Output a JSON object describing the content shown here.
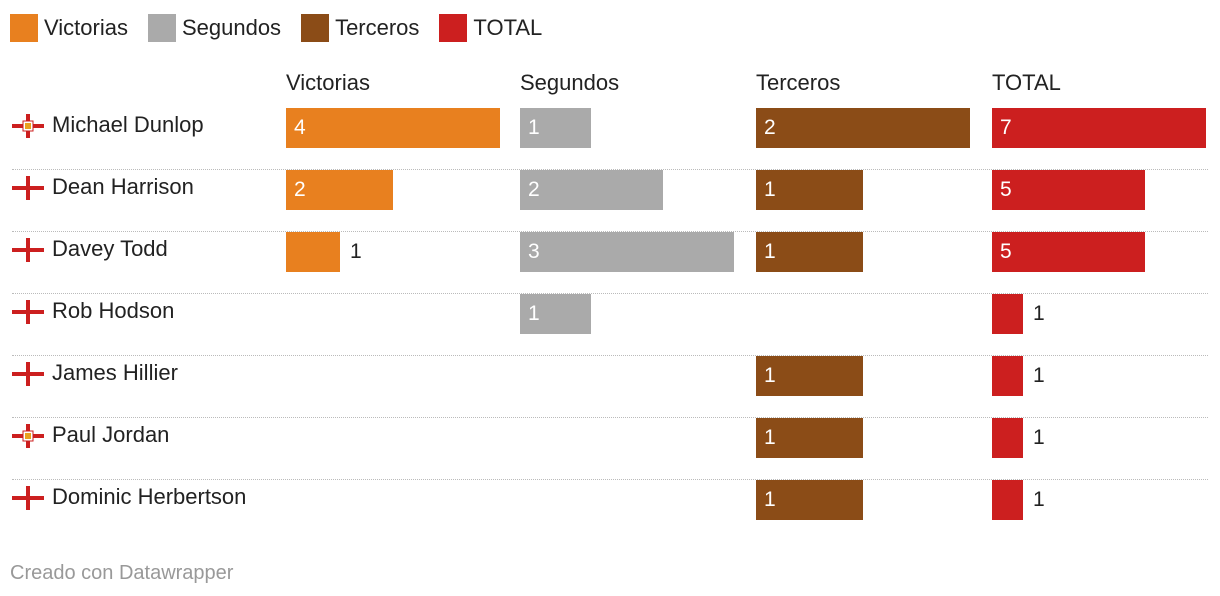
{
  "legend": [
    {
      "label": "Victorias",
      "color": "#e8801f"
    },
    {
      "label": "Segundos",
      "color": "#aaaaaa"
    },
    {
      "label": "Terceros",
      "color": "#8b4c17"
    },
    {
      "label": "TOTAL",
      "color": "#cc1f1f"
    }
  ],
  "chart_data": {
    "type": "bar",
    "columns": [
      "Victorias",
      "Segundos",
      "Terceros",
      "TOTAL"
    ],
    "column_colors": [
      "#e8801f",
      "#aaaaaa",
      "#8b4c17",
      "#cc1f1f"
    ],
    "column_max": [
      4,
      3,
      2,
      7
    ],
    "rows": [
      {
        "name": "Michael Dunlop",
        "flag": "northern-ireland",
        "values": [
          4,
          1,
          2,
          7
        ]
      },
      {
        "name": "Dean Harrison",
        "flag": "england",
        "values": [
          2,
          2,
          1,
          5
        ]
      },
      {
        "name": "Davey Todd",
        "flag": "england",
        "values": [
          1,
          3,
          1,
          5
        ]
      },
      {
        "name": "Rob Hodson",
        "flag": "england",
        "values": [
          null,
          1,
          null,
          1
        ]
      },
      {
        "name": "James Hillier",
        "flag": "england",
        "values": [
          null,
          null,
          1,
          1
        ]
      },
      {
        "name": "Paul Jordan",
        "flag": "northern-ireland",
        "values": [
          null,
          null,
          1,
          1
        ]
      },
      {
        "name": "Dominic Herbertson",
        "flag": "england",
        "values": [
          null,
          null,
          1,
          1
        ]
      }
    ]
  },
  "footer": {
    "text": "Creado con Datawrapper"
  }
}
